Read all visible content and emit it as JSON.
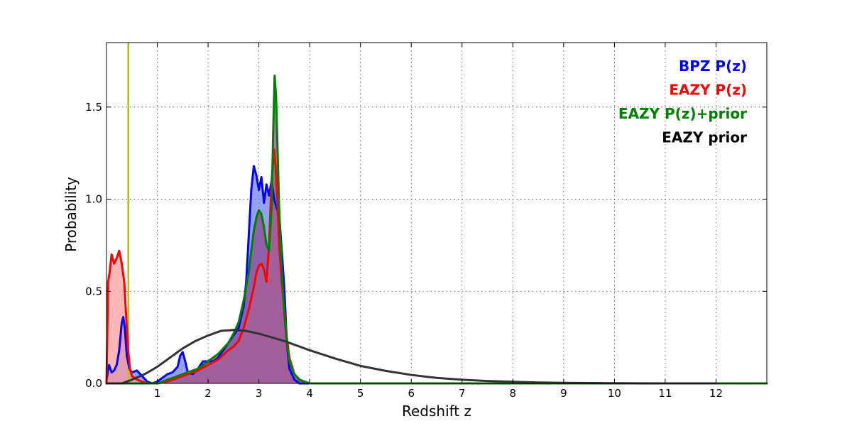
{
  "chart_data": {
    "type": "area",
    "xlabel": "Redshift z",
    "ylabel": "Probability",
    "xlim": [
      0,
      13
    ],
    "ylim": [
      0,
      1.85
    ],
    "xticks": [
      1,
      2,
      3,
      4,
      5,
      6,
      7,
      8,
      9,
      10,
      11,
      12
    ],
    "yticks": [
      0.0,
      0.5,
      1.0,
      1.5
    ],
    "grid": true,
    "legend_placement": "top-right",
    "vertical_line": {
      "x": 0.43,
      "color": "#bfbf00"
    },
    "series": [
      {
        "name": "BPZ P(z)",
        "color": "#0000ff",
        "fill": "#6f82e8",
        "x": [
          0.0,
          0.05,
          0.1,
          0.15,
          0.2,
          0.25,
          0.3,
          0.33,
          0.36,
          0.4,
          0.45,
          0.5,
          0.6,
          0.7,
          0.8,
          0.9,
          1.0,
          1.1,
          1.2,
          1.3,
          1.4,
          1.45,
          1.5,
          1.55,
          1.6,
          1.7,
          1.8,
          1.9,
          2.0,
          2.1,
          2.2,
          2.3,
          2.4,
          2.5,
          2.6,
          2.7,
          2.75,
          2.8,
          2.85,
          2.9,
          2.95,
          3.0,
          3.05,
          3.1,
          3.15,
          3.2,
          3.25,
          3.3,
          3.35,
          3.4,
          3.45,
          3.5,
          3.55,
          3.6,
          3.7,
          3.8,
          4.0,
          5.0,
          8.0,
          13.0
        ],
        "values": [
          0.02,
          0.1,
          0.06,
          0.07,
          0.1,
          0.18,
          0.33,
          0.36,
          0.3,
          0.15,
          0.08,
          0.06,
          0.07,
          0.04,
          0.01,
          0.0,
          0.01,
          0.03,
          0.05,
          0.06,
          0.09,
          0.15,
          0.17,
          0.12,
          0.06,
          0.05,
          0.08,
          0.12,
          0.12,
          0.12,
          0.14,
          0.18,
          0.22,
          0.26,
          0.3,
          0.42,
          0.55,
          0.8,
          1.05,
          1.18,
          1.13,
          1.05,
          1.12,
          0.98,
          1.08,
          1.02,
          1.1,
          1.0,
          0.95,
          0.92,
          0.72,
          0.52,
          0.22,
          0.08,
          0.02,
          0.0,
          0.0,
          0.0,
          0.0,
          0.0
        ]
      },
      {
        "name": "EAZY P(z)",
        "color": "#ff0000",
        "fill": "#ff9d9d",
        "x": [
          0.0,
          0.03,
          0.06,
          0.1,
          0.15,
          0.2,
          0.25,
          0.3,
          0.35,
          0.38,
          0.42,
          0.46,
          0.5,
          0.6,
          0.7,
          0.8,
          0.9,
          1.0,
          1.2,
          1.4,
          1.6,
          1.8,
          2.0,
          2.2,
          2.4,
          2.5,
          2.6,
          2.7,
          2.8,
          2.9,
          2.95,
          3.0,
          3.05,
          3.1,
          3.15,
          3.2,
          3.25,
          3.3,
          3.33,
          3.37,
          3.4,
          3.45,
          3.5,
          3.55,
          3.6,
          3.7,
          3.8,
          3.9,
          4.0,
          4.2,
          13.0
        ],
        "values": [
          0.0,
          0.55,
          0.6,
          0.7,
          0.65,
          0.68,
          0.72,
          0.65,
          0.55,
          0.4,
          0.2,
          0.08,
          0.04,
          0.02,
          0.01,
          0.0,
          0.0,
          0.0,
          0.01,
          0.03,
          0.05,
          0.07,
          0.1,
          0.13,
          0.18,
          0.2,
          0.23,
          0.3,
          0.4,
          0.52,
          0.6,
          0.64,
          0.65,
          0.62,
          0.55,
          0.75,
          1.1,
          1.27,
          1.18,
          0.95,
          0.75,
          0.55,
          0.4,
          0.25,
          0.14,
          0.05,
          0.02,
          0.01,
          0.0,
          0.0,
          0.0
        ]
      },
      {
        "name": "EAZY P(z)+prior",
        "color": "#008000",
        "fill": "#8e4a92",
        "x": [
          0.0,
          0.5,
          0.8,
          1.0,
          1.2,
          1.4,
          1.6,
          1.8,
          2.0,
          2.2,
          2.4,
          2.5,
          2.6,
          2.7,
          2.8,
          2.85,
          2.9,
          2.95,
          3.0,
          3.05,
          3.1,
          3.15,
          3.2,
          3.25,
          3.28,
          3.31,
          3.34,
          3.37,
          3.4,
          3.45,
          3.5,
          3.55,
          3.6,
          3.7,
          3.8,
          3.9,
          4.0,
          4.2,
          13.0
        ],
        "values": [
          0.0,
          0.0,
          0.0,
          0.0,
          0.02,
          0.04,
          0.06,
          0.08,
          0.12,
          0.16,
          0.22,
          0.27,
          0.33,
          0.45,
          0.6,
          0.72,
          0.83,
          0.9,
          0.94,
          0.92,
          0.85,
          0.75,
          0.72,
          0.95,
          1.35,
          1.67,
          1.55,
          1.25,
          0.95,
          0.6,
          0.38,
          0.22,
          0.12,
          0.05,
          0.02,
          0.01,
          0.0,
          0.0,
          0.0
        ]
      },
      {
        "name": "EAZY prior",
        "color": "#333333",
        "fill": "none",
        "x": [
          0.0,
          0.3,
          0.5,
          0.75,
          1.0,
          1.25,
          1.5,
          1.75,
          2.0,
          2.25,
          2.5,
          2.75,
          3.0,
          3.5,
          4.0,
          4.5,
          5.0,
          5.5,
          6.0,
          6.5,
          7.0,
          7.5,
          8.0,
          8.5,
          9.0,
          10.0,
          11.0,
          12.0
        ],
        "values": [
          0.0,
          0.0,
          0.02,
          0.05,
          0.09,
          0.14,
          0.19,
          0.23,
          0.26,
          0.285,
          0.29,
          0.285,
          0.27,
          0.23,
          0.18,
          0.135,
          0.095,
          0.068,
          0.046,
          0.03,
          0.02,
          0.013,
          0.009,
          0.005,
          0.003,
          0.001,
          0.0,
          0.0
        ]
      }
    ]
  }
}
